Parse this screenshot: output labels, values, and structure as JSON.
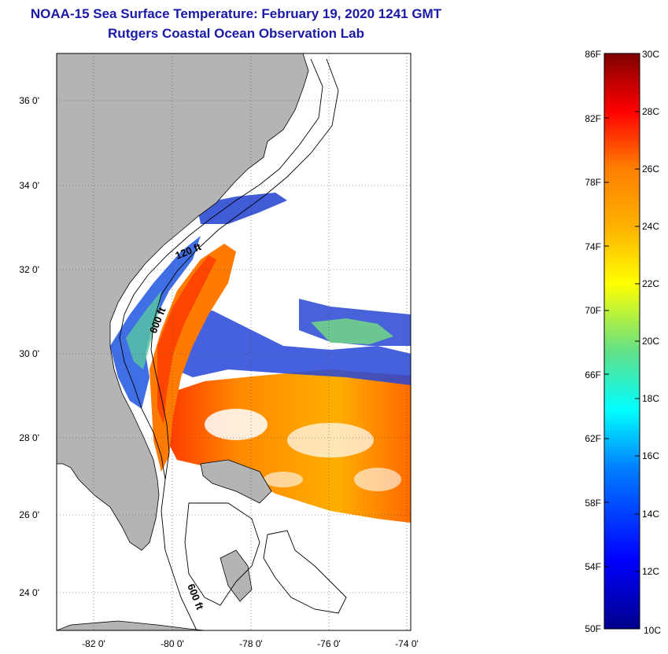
{
  "title": {
    "line1": "NOAA-15 Sea Surface Temperature:  February 19, 2020 1241 GMT",
    "line2": "Rutgers Coastal Ocean Observation Lab"
  },
  "map": {
    "lat_labels": [
      "36 0'",
      "34 0'",
      "32 0'",
      "30 0'",
      "28 0'",
      "26 0'",
      "24 0'"
    ],
    "lon_labels": [
      "-82 0'",
      "-80 0'",
      "-78 0'",
      "-76 0'",
      "-74 0'"
    ],
    "contour_labels": [
      "120 ft",
      "600 ft",
      "600 ft"
    ]
  },
  "colorbar": {
    "fahrenheit_labels": [
      "86F",
      "82F",
      "78F",
      "74F",
      "70F",
      "66F",
      "62F",
      "58F",
      "54F",
      "50F"
    ],
    "celsius_labels": [
      "30C",
      "28C",
      "26C",
      "24C",
      "22C",
      "20C",
      "18C",
      "16C",
      "14C",
      "12C",
      "10C"
    ]
  },
  "colors": {
    "land": "#b4b4b4",
    "title": "#1a1aa6",
    "cloud": "#ffffff"
  }
}
